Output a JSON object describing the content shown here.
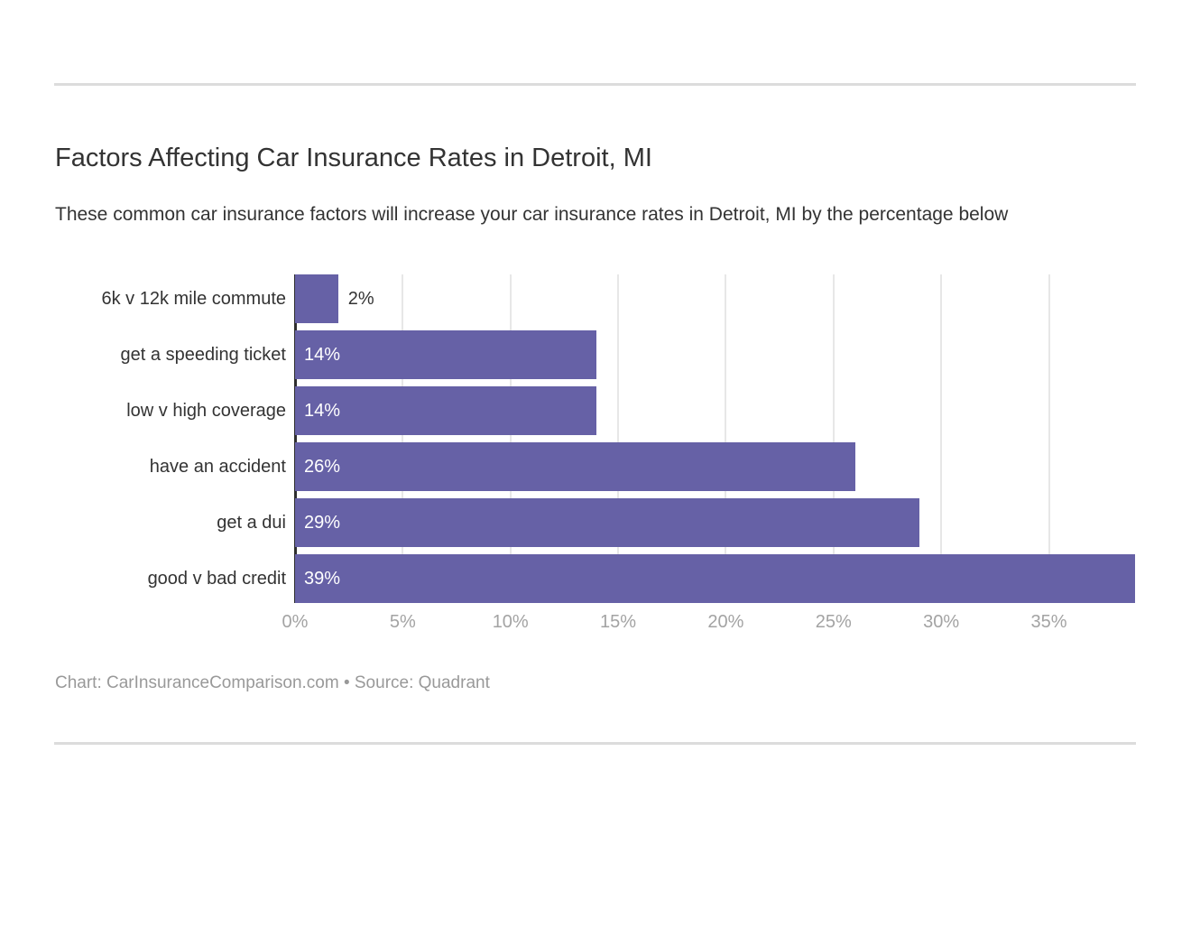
{
  "page": {
    "title": "Factors Affecting Car Insurance Rates in Detroit, MI",
    "subtitle": "These common car insurance factors will increase your car insurance rates in Detroit, MI by the percentage below",
    "footer": "Chart: CarInsuranceComparison.com • Source: Quadrant"
  },
  "colors": {
    "bar": "#6661a6",
    "title_text": "#333333",
    "axis_text": "#a3a3a3",
    "footer_text": "#999999",
    "divider": "#dcdcdc",
    "gridline": "#e7e7e7",
    "axis_line": "#2e2e2e",
    "value_label_inside": "#ffffff",
    "value_label_outside": "#333333"
  },
  "chart_data": {
    "type": "bar",
    "orientation": "horizontal",
    "title": "Factors Affecting Car Insurance Rates in Detroit, MI",
    "xlabel": "",
    "ylabel": "",
    "categories": [
      "6k v 12k mile commute",
      "get a speeding ticket",
      "low v high coverage",
      "have an accident",
      "get a dui",
      "good v bad credit"
    ],
    "values": [
      2,
      14,
      14,
      26,
      29,
      39
    ],
    "value_labels": [
      "2%",
      "14%",
      "14%",
      "26%",
      "29%",
      "39%"
    ],
    "label_inside": [
      false,
      true,
      true,
      true,
      true,
      true
    ],
    "x_ticks": [
      "0%",
      "5%",
      "10%",
      "15%",
      "20%",
      "25%",
      "30%",
      "35%"
    ],
    "x_tick_values": [
      0,
      5,
      10,
      15,
      20,
      25,
      30,
      35
    ],
    "xlim": [
      0,
      39
    ],
    "grid": true,
    "legend": false
  }
}
